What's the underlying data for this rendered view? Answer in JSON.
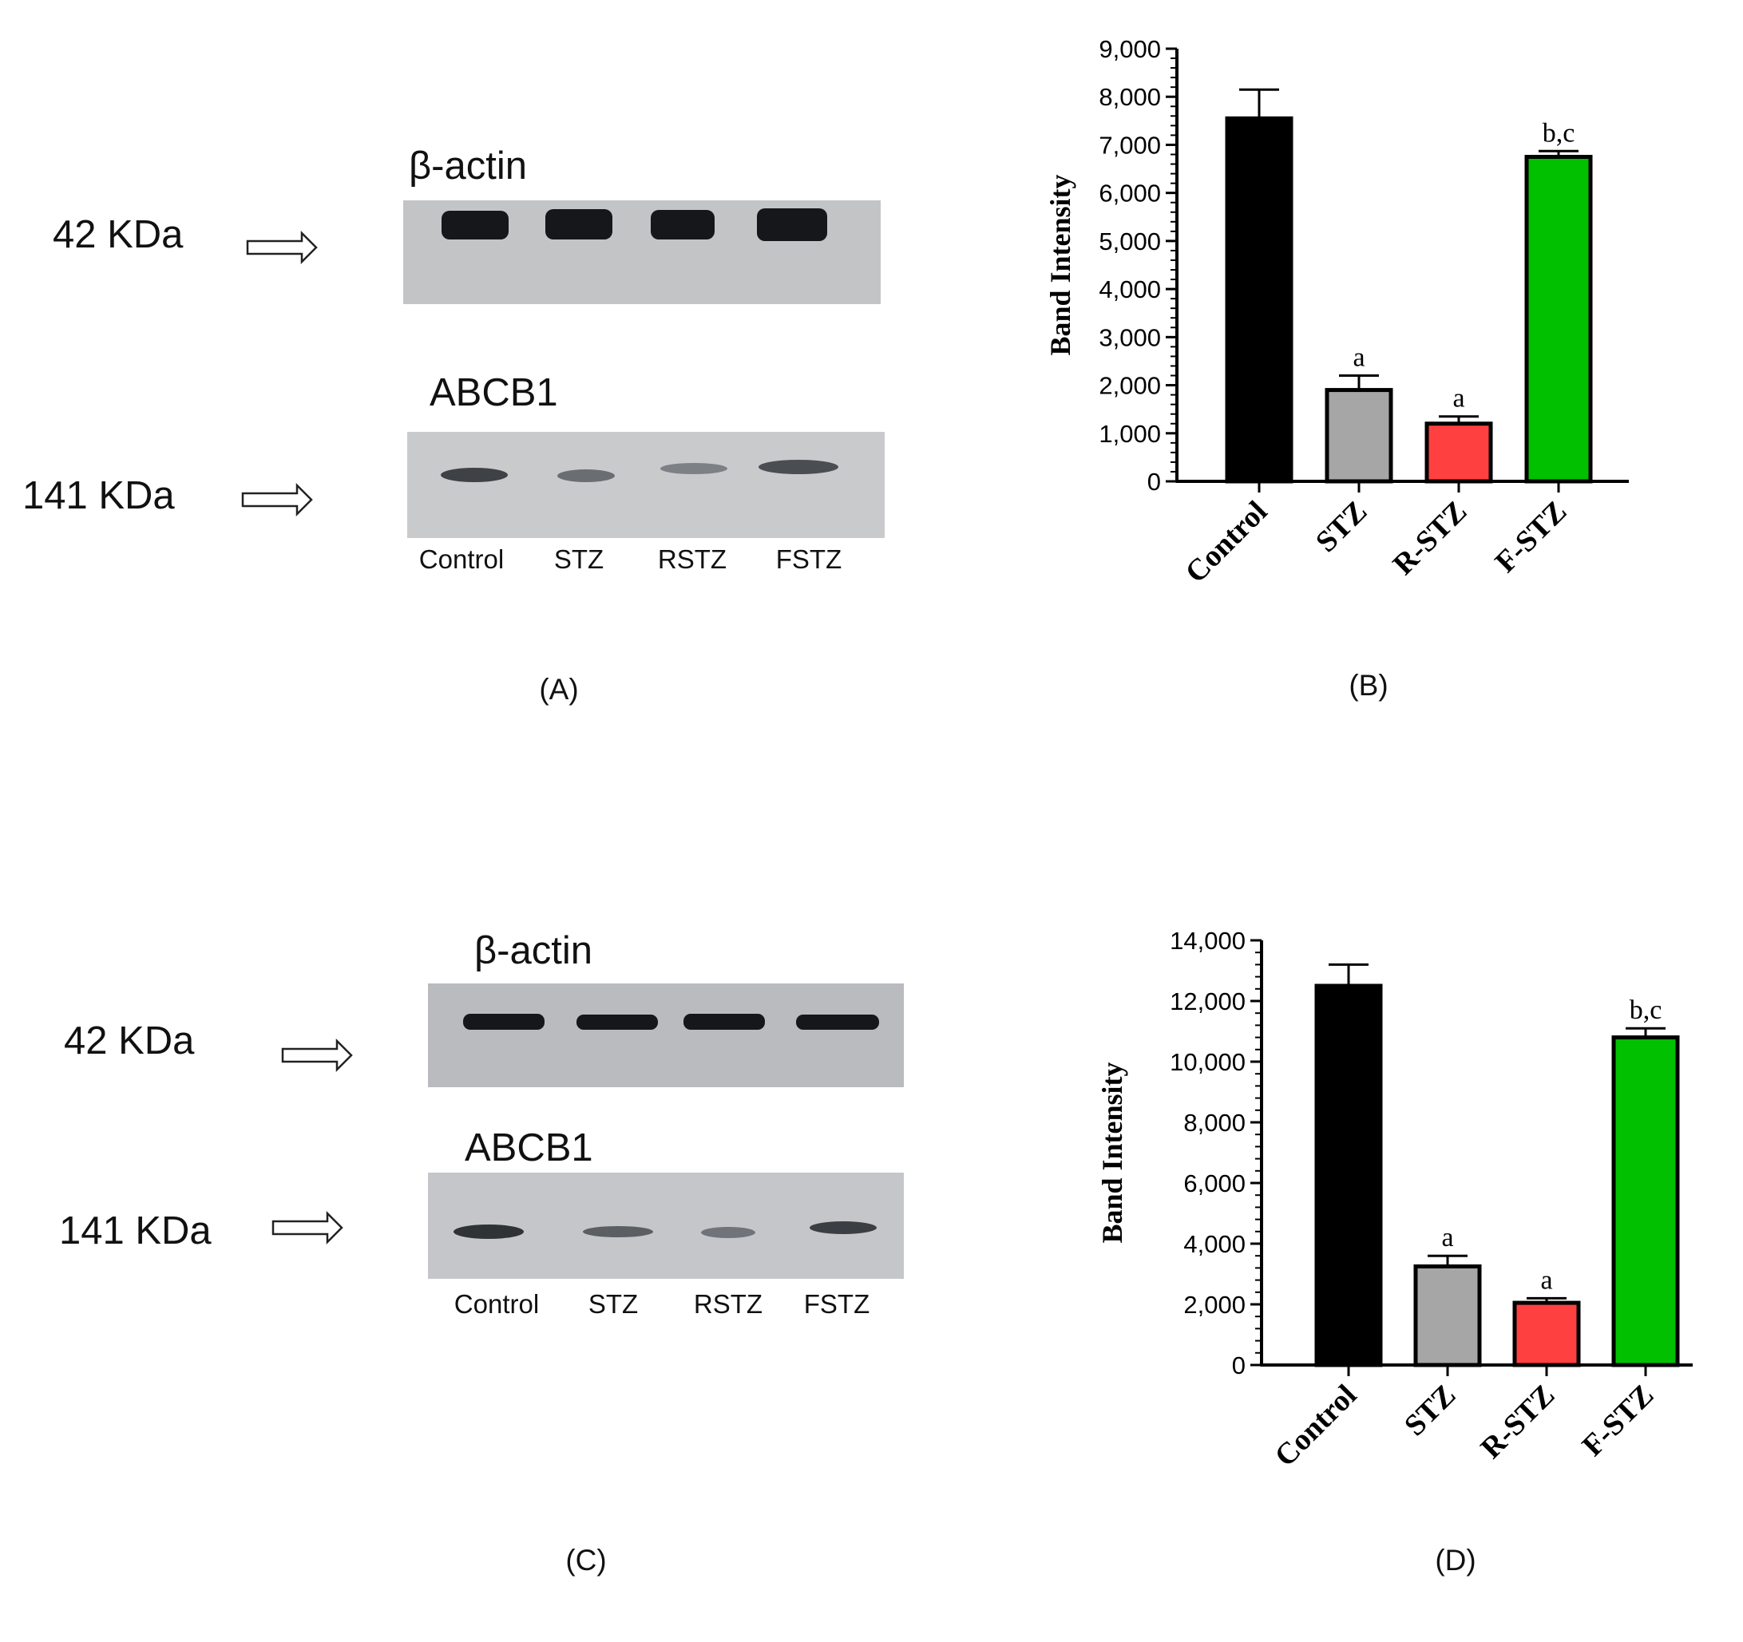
{
  "panels": [
    {
      "label": "(A)",
      "blots": [
        {
          "name": "β-actin",
          "kda": "42 KDa"
        },
        {
          "name": "ABCB1",
          "kda": "141 KDa"
        }
      ],
      "lanes": [
        "Control",
        "STZ",
        "RSTZ",
        "FSTZ"
      ]
    },
    {
      "label": "(C)",
      "blots": [
        {
          "name": "β-actin",
          "kda": "42 KDa"
        },
        {
          "name": "ABCB1",
          "kda": "141 KDa"
        }
      ],
      "lanes": [
        "Control",
        "STZ",
        "RSTZ",
        "FSTZ"
      ]
    }
  ],
  "panel_labels": {
    "b": "(B)",
    "d": "(D)"
  },
  "colors": {
    "control": "#000000",
    "stz": "#a6a6a6",
    "rstz": "#ff4040",
    "fstz": "#00c000"
  },
  "chart_data": [
    {
      "type": "bar",
      "panel": "(B)",
      "ylabel": "Band Intensity",
      "xlabel": "",
      "ylim": [
        0,
        9000
      ],
      "ytick_step": 1000,
      "yticks": [
        "0",
        "1,000",
        "2,000",
        "3,000",
        "4,000",
        "5,000",
        "6,000",
        "7,000",
        "8,000",
        "9,000"
      ],
      "categories": [
        "Control",
        "STZ",
        "R-STZ",
        "F-STZ"
      ],
      "values": [
        7550,
        1900,
        1200,
        6750
      ],
      "errors": [
        600,
        300,
        150,
        120
      ],
      "annotations": [
        "",
        "a",
        "a",
        "b,c"
      ],
      "colors": [
        "#000000",
        "#a6a6a6",
        "#ff4040",
        "#00c000"
      ]
    },
    {
      "type": "bar",
      "panel": "(D)",
      "ylabel": "Band Intensity",
      "xlabel": "",
      "ylim": [
        0,
        14000
      ],
      "ytick_step": 2000,
      "yticks": [
        "0",
        "2,000",
        "4,000",
        "6,000",
        "8,000",
        "10,000",
        "12,000",
        "14,000"
      ],
      "categories": [
        "Control",
        "STZ",
        "R-STZ",
        "F-STZ"
      ],
      "values": [
        12500,
        3250,
        2050,
        10800
      ],
      "errors": [
        700,
        350,
        150,
        300
      ],
      "annotations": [
        "",
        "a",
        "a",
        "b,c"
      ],
      "colors": [
        "#000000",
        "#a6a6a6",
        "#ff4040",
        "#00c000"
      ]
    }
  ]
}
